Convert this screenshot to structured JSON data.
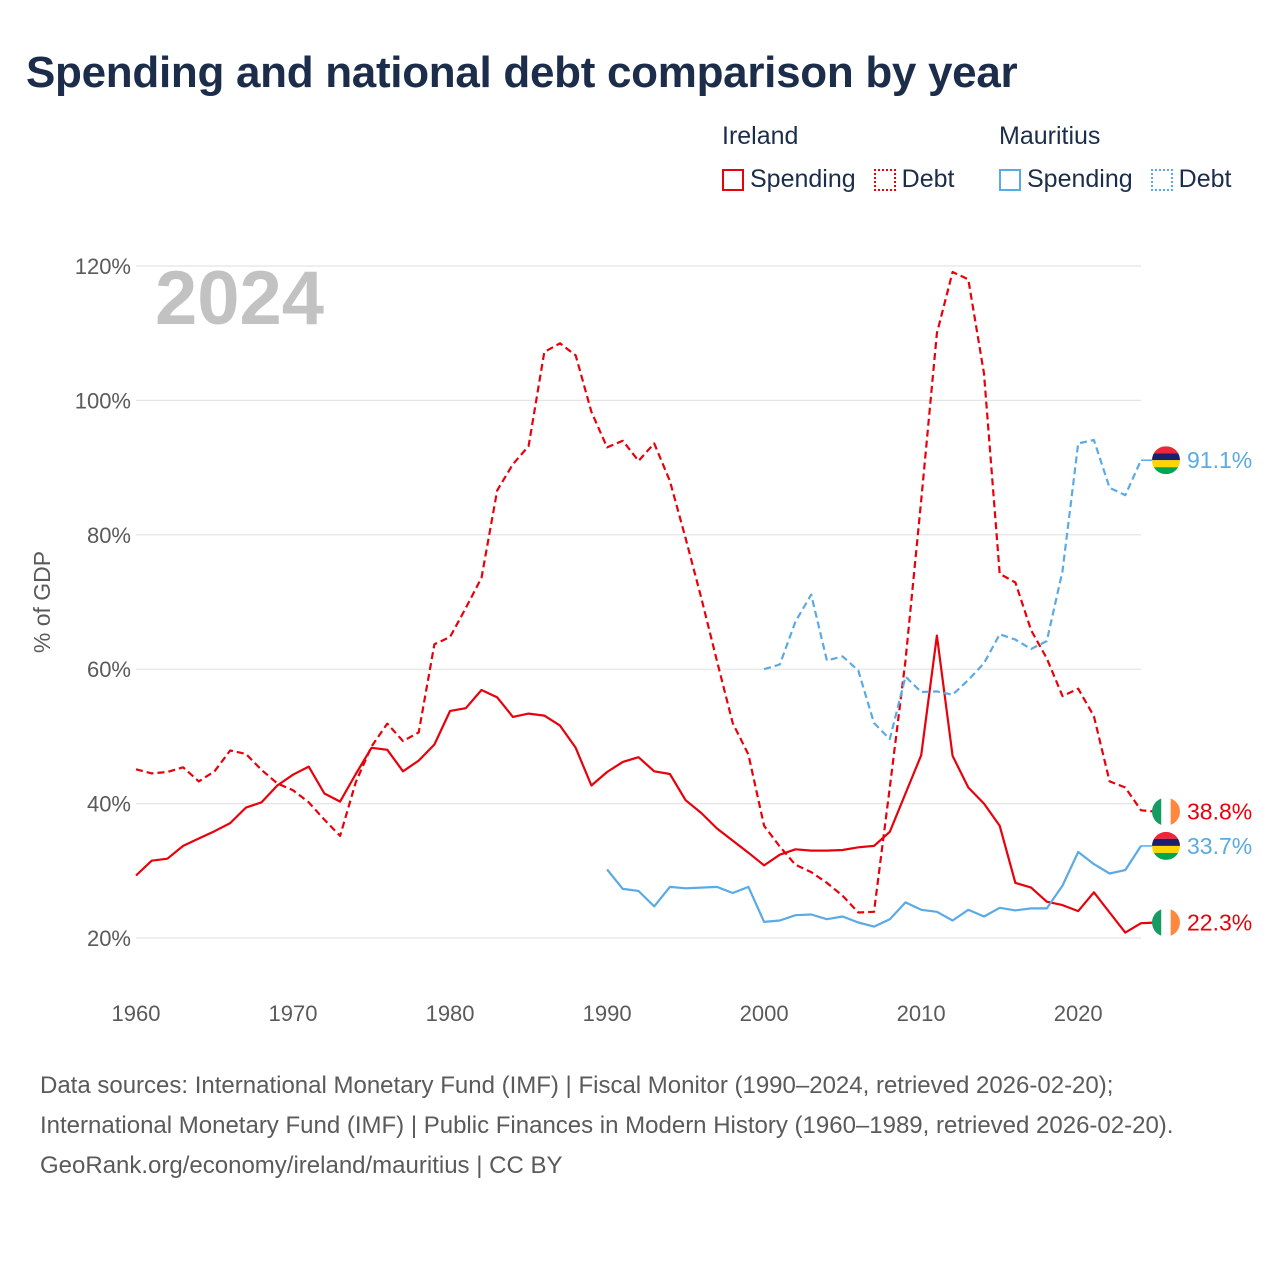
{
  "title": "Spending and national debt comparison by year",
  "legend": {
    "groups": [
      {
        "name": "Ireland",
        "color": "#e8000b",
        "spending_label": "Spending",
        "debt_label": "Debt"
      },
      {
        "name": "Mauritius",
        "color": "#5aaae6",
        "spending_label": "Spending",
        "debt_label": "Debt"
      }
    ]
  },
  "chart_data": {
    "type": "line",
    "title": "Spending and national debt comparison by year",
    "xlabel": "",
    "ylabel": "% of GDP",
    "year_label": "2024",
    "xlim": [
      1960,
      2024
    ],
    "ylim": [
      14,
      124
    ],
    "x_ticks": [
      "1960",
      "1970",
      "1980",
      "1990",
      "2000",
      "2010",
      "2020"
    ],
    "x_tick_values": [
      1960,
      1970,
      1980,
      1990,
      2000,
      2010,
      2020
    ],
    "y_ticks": [
      "20%",
      "40%",
      "60%",
      "80%",
      "100%",
      "120%"
    ],
    "y_tick_values": [
      20,
      40,
      60,
      80,
      100,
      120
    ],
    "grid": true,
    "series": [
      {
        "name": "Ireland Spending",
        "color": "#e8000b",
        "dash": "solid",
        "start_year": 1960,
        "values": [
          29.3,
          31.5,
          31.8,
          33.7,
          34.8,
          35.9,
          37.1,
          39.4,
          40.2,
          42.7,
          44.3,
          45.5,
          41.5,
          40.3,
          44.4,
          48.3,
          48.0,
          44.8,
          46.4,
          48.8,
          53.8,
          54.2,
          56.9,
          55.8,
          52.9,
          53.4,
          53.1,
          51.6,
          48.3,
          42.7,
          44.7,
          46.2,
          46.9,
          44.8,
          44.4,
          40.5,
          38.6,
          36.3,
          34.5,
          32.7,
          30.8,
          32.4,
          33.2,
          33.0,
          33.0,
          33.1,
          33.5,
          33.7,
          35.8,
          41.5,
          47.2,
          65.0,
          47.1,
          42.4,
          40.0,
          36.7,
          28.2,
          27.5,
          25.4,
          24.9,
          24.0,
          26.8,
          23.8,
          20.8,
          22.2,
          22.3
        ]
      },
      {
        "name": "Ireland Debt",
        "color": "#e8000b",
        "dash": "dashed",
        "start_year": 1960,
        "values": [
          45.1,
          44.5,
          44.7,
          45.4,
          43.3,
          44.8,
          47.9,
          47.4,
          45.0,
          43.0,
          42.0,
          40.2,
          37.6,
          35.2,
          43.2,
          48.5,
          51.9,
          49.3,
          50.6,
          63.7,
          64.8,
          69.1,
          73.6,
          86.6,
          90.5,
          93.2,
          107.2,
          108.5,
          106.7,
          98.3,
          93.0,
          94.0,
          91.0,
          93.6,
          88.0,
          79.5,
          70.6,
          61.2,
          52.0,
          47.3,
          36.7,
          33.6,
          30.9,
          29.8,
          28.2,
          26.3,
          23.8,
          23.9,
          42.4,
          61.3,
          85.1,
          110.0,
          119.1,
          118.0,
          104.0,
          74.2,
          72.9,
          65.8,
          61.6,
          56.0,
          57.1,
          53.0,
          43.3,
          42.4,
          39.0,
          38.8
        ]
      },
      {
        "name": "Mauritius Spending",
        "color": "#5aaae6",
        "dash": "solid",
        "start_year": 1990,
        "values": [
          30.2,
          27.3,
          27.0,
          24.7,
          27.6,
          27.4,
          27.5,
          27.6,
          26.7,
          27.6,
          22.4,
          22.6,
          23.4,
          23.5,
          22.8,
          23.2,
          22.3,
          21.7,
          22.8,
          25.3,
          24.2,
          23.9,
          22.6,
          24.2,
          23.2,
          24.5,
          24.1,
          24.4,
          24.4,
          27.8,
          32.8,
          31.0,
          29.6,
          30.1,
          33.7
        ]
      },
      {
        "name": "Mauritius Debt",
        "color": "#5aaae6",
        "dash": "dashed",
        "start_year": 2000,
        "values": [
          60.0,
          60.7,
          67.1,
          71.1,
          61.3,
          61.9,
          59.8,
          52.0,
          49.6,
          58.9,
          56.6,
          56.7,
          56.2,
          58.4,
          60.9,
          65.2,
          64.4,
          63.0,
          64.2,
          74.6,
          93.6,
          94.1,
          87.0,
          85.9,
          91.1
        ]
      }
    ],
    "end_labels": [
      {
        "text": "91.1%",
        "series": "Mauritius Debt",
        "flag": "mauritius-flag-icon"
      },
      {
        "text": "38.8%",
        "series": "Ireland Debt",
        "flag": "ireland-flag-icon"
      },
      {
        "text": "33.7%",
        "series": "Mauritius Spending",
        "flag": "mauritius-flag-icon"
      },
      {
        "text": "22.3%",
        "series": "Ireland Spending",
        "flag": "ireland-flag-icon"
      }
    ]
  },
  "sources": {
    "line1": "Data sources: International Monetary Fund (IMF) | Fiscal Monitor (1990–2024, retrieved 2026-02-20); International Monetary Fund (IMF) | Public Finances in Modern History (1960–1989, retrieved 2026-02-20).",
    "line2": "GeoRank.org/economy/ireland/mauritius | CC BY"
  }
}
